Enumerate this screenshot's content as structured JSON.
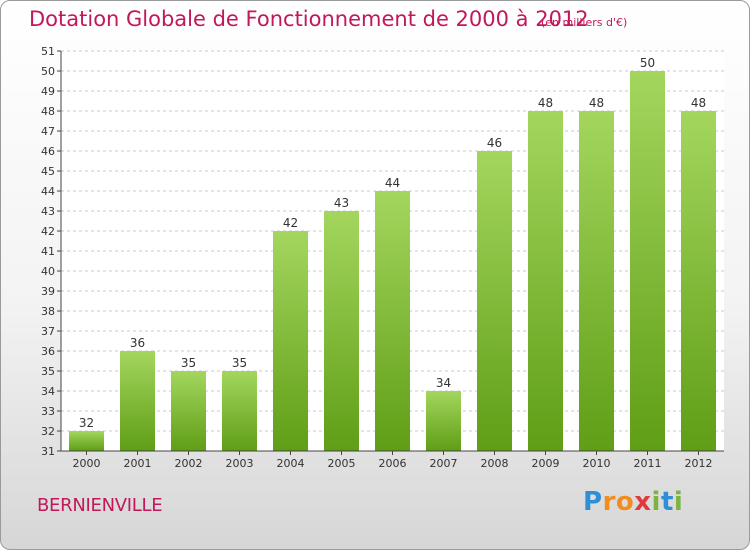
{
  "title": "Dotation Globale de Fonctionnement de 2000 à 2012",
  "unit_note": "(en milliers d'€)",
  "commune": "BERNIENVILLE",
  "logo": {
    "letters": [
      "P",
      "r",
      "o",
      "x",
      "i",
      "t",
      "i"
    ],
    "colors": [
      "#2e8ed6",
      "#f28c1e",
      "#f28c1e",
      "#e23a3a",
      "#7cb342",
      "#2e8ed6",
      "#7cb342"
    ]
  },
  "colors": {
    "title": "#c2185b",
    "bar_light": "#a4d65e",
    "bar_dark": "#5f9e16",
    "grid": "#c8c8c8"
  },
  "chart_data": {
    "type": "bar",
    "title": "Dotation Globale de Fonctionnement de 2000 à 2012",
    "subtitle": "(en milliers d'€)",
    "categories": [
      "2000",
      "2001",
      "2002",
      "2003",
      "2004",
      "2005",
      "2006",
      "2007",
      "2008",
      "2009",
      "2010",
      "2011",
      "2012"
    ],
    "values": [
      32,
      36,
      35,
      35,
      42,
      43,
      44,
      34,
      46,
      48,
      48,
      50,
      48
    ],
    "data_labels": [
      "32",
      "36",
      "35",
      "35",
      "42",
      "43",
      "44",
      "34",
      "46",
      "48",
      "48",
      "50",
      "48"
    ],
    "y_ticks": [
      31,
      32,
      33,
      34,
      35,
      36,
      37,
      38,
      39,
      40,
      41,
      42,
      43,
      44,
      45,
      46,
      47,
      48,
      49,
      50,
      51
    ],
    "ylim": [
      31,
      51
    ],
    "grid": "horizontal dashed",
    "xlabel": "",
    "ylabel": ""
  }
}
